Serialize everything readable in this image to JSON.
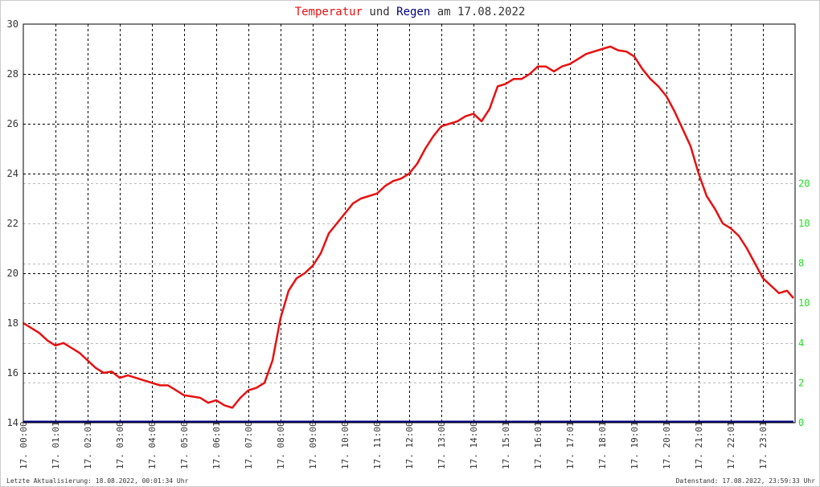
{
  "chart_data": {
    "type": "line",
    "title": {
      "part1": "Temperatur",
      "part2": " und ",
      "part3": "Regen",
      "part4": " am 17.08.2022"
    },
    "colors": {
      "temperature": "#e81010",
      "rain": "#000080",
      "title_temperature": "#e81010",
      "title_rain": "#000080",
      "right_axis": "#22dd22",
      "grid": "#000000"
    },
    "y_left": {
      "min": 14,
      "max": 30,
      "ticks": [
        14,
        16,
        18,
        20,
        22,
        24,
        26,
        28,
        30
      ]
    },
    "y_right": {
      "min": 0,
      "max": 20,
      "ticks": [
        0,
        2,
        4,
        10,
        8,
        10,
        20
      ],
      "tick_positions": [
        0,
        2,
        4,
        6,
        8,
        10,
        12
      ]
    },
    "x_labels": [
      "17. 00:00",
      "17. 01:01",
      "17. 02:01",
      "17. 03:00",
      "17. 04:00",
      "17. 05:00",
      "17. 06:01",
      "17. 07:00",
      "17. 08:00",
      "17. 09:00",
      "17. 10:00",
      "17. 11:00",
      "17. 12:00",
      "17. 13:00",
      "17. 14:00",
      "17. 15:01",
      "17. 16:01",
      "17. 17:01",
      "17. 18:01",
      "17. 19:01",
      "17. 20:01",
      "17. 21:01",
      "17. 22:01",
      "17. 23:01"
    ],
    "grid": true,
    "series": [
      {
        "key": "temperature",
        "x": [
          0,
          0.25,
          0.5,
          0.75,
          1.0,
          1.25,
          1.5,
          1.75,
          2.0,
          2.25,
          2.5,
          2.75,
          3.0,
          3.25,
          3.5,
          3.75,
          4.0,
          4.25,
          4.5,
          4.75,
          5.0,
          5.25,
          5.5,
          5.75,
          6.0,
          6.25,
          6.5,
          6.75,
          7.0,
          7.25,
          7.5,
          7.75,
          8.0,
          8.25,
          8.5,
          8.75,
          9.0,
          9.25,
          9.5,
          9.75,
          10.0,
          10.25,
          10.5,
          10.75,
          11.0,
          11.25,
          11.5,
          11.75,
          12.0,
          12.25,
          12.5,
          12.75,
          13.0,
          13.25,
          13.5,
          13.75,
          14.0,
          14.25,
          14.5,
          14.75,
          15.0,
          15.25,
          15.5,
          15.75,
          16.0,
          16.25,
          16.5,
          16.75,
          17.0,
          17.25,
          17.5,
          17.75,
          18.0,
          18.25,
          18.5,
          18.75,
          19.0,
          19.25,
          19.5,
          19.75,
          20.0,
          20.25,
          20.5,
          20.75,
          21.0,
          21.25,
          21.5,
          21.75,
          22.0,
          22.25,
          22.5,
          22.75,
          23.0,
          23.25,
          23.5,
          23.75,
          23.95
        ],
        "values": [
          18.0,
          17.8,
          17.6,
          17.3,
          17.1,
          17.2,
          17.0,
          16.8,
          16.5,
          16.2,
          16.0,
          16.05,
          15.8,
          15.9,
          15.8,
          15.7,
          15.6,
          15.5,
          15.5,
          15.3,
          15.1,
          15.05,
          15.0,
          14.8,
          14.9,
          14.7,
          14.6,
          15.0,
          15.3,
          15.4,
          15.6,
          16.5,
          18.2,
          19.3,
          19.8,
          20.0,
          20.3,
          20.8,
          21.6,
          22.0,
          22.4,
          22.8,
          23.0,
          23.1,
          23.2,
          23.5,
          23.7,
          23.8,
          24.0,
          24.4,
          25.0,
          25.5,
          25.9,
          26.0,
          26.1,
          26.3,
          26.4,
          26.1,
          26.6,
          27.5,
          27.6,
          27.8,
          27.8,
          28.0,
          28.3,
          28.3,
          28.1,
          28.3,
          28.4,
          28.6,
          28.8,
          28.9,
          29.0,
          29.1,
          28.95,
          28.9,
          28.7,
          28.2,
          27.8,
          27.5,
          27.1,
          26.5,
          25.8,
          25.1,
          24.0,
          23.1,
          22.6,
          22.0,
          21.8,
          21.5,
          21.0,
          20.4,
          19.8,
          19.5,
          19.2,
          19.3,
          19.0
        ]
      },
      {
        "key": "rain",
        "x": [
          0,
          23.95
        ],
        "values": [
          0,
          0
        ]
      }
    ],
    "footer_left": "Letzte Aktualisierung: 18.08.2022, 00:01:34 Uhr",
    "footer_right": "Datenstand: 17.08.2022, 23:59:33 Uhr"
  }
}
